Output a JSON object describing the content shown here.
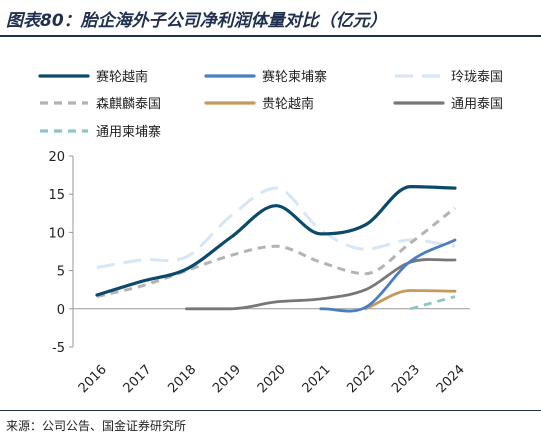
{
  "title": "图表80：胎企海外子公司净利润体量对比（亿元）",
  "source": "来源：公司公告、国金证券研究所",
  "chart_data": {
    "type": "line",
    "title": "图表80：胎企海外子公司净利润体量对比（亿元）",
    "xlabel": "",
    "ylabel": "",
    "categories": [
      "2016",
      "2017",
      "2018",
      "2019",
      "2020",
      "2021",
      "2022",
      "2023",
      "2024"
    ],
    "ylim": [
      -5,
      20
    ],
    "yticks": [
      -5,
      0,
      5,
      10,
      15,
      20
    ],
    "grid": false,
    "legend_position": "top",
    "series": [
      {
        "name": "赛轮越南",
        "color": "#0b4a6b",
        "dash": "solid",
        "width": 3.2,
        "values": [
          1.8,
          3.6,
          5.2,
          9.4,
          13.5,
          9.8,
          11.0,
          16.0,
          15.8
        ]
      },
      {
        "name": "赛轮柬埔寨",
        "color": "#4a7ec4",
        "dash": "solid",
        "width": 2.8,
        "values": [
          null,
          null,
          null,
          null,
          null,
          0.0,
          0.2,
          6.2,
          9.0
        ]
      },
      {
        "name": "玲珑泰国",
        "color": "#d6e6f4",
        "dash": "long-dash",
        "width": 3,
        "values": [
          5.4,
          6.4,
          6.8,
          12.2,
          15.8,
          10.3,
          7.8,
          9.0,
          8.2
        ]
      },
      {
        "name": "森麒麟泰国",
        "color": "#b3b3b3",
        "dash": "dash",
        "width": 3,
        "values": [
          1.6,
          3.0,
          5.0,
          7.0,
          8.2,
          6.1,
          4.6,
          8.6,
          13.2
        ]
      },
      {
        "name": "贵轮越南",
        "color": "#c49a5a",
        "dash": "solid",
        "width": 2.8,
        "values": [
          null,
          null,
          null,
          null,
          null,
          null,
          0.0,
          2.4,
          2.3
        ]
      },
      {
        "name": "通用泰国",
        "color": "#777777",
        "dash": "solid",
        "width": 2.8,
        "values": [
          null,
          null,
          0.0,
          0.0,
          0.9,
          1.3,
          2.5,
          6.1,
          6.4
        ]
      },
      {
        "name": "通用柬埔寨",
        "color": "#8cc5c3",
        "dash": "dash",
        "width": 2.8,
        "values": [
          null,
          null,
          null,
          null,
          null,
          null,
          null,
          0.0,
          1.6
        ]
      }
    ]
  }
}
